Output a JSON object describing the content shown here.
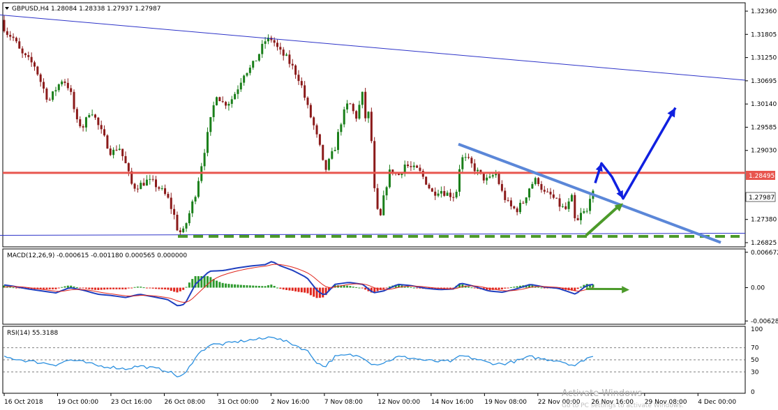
{
  "header": {
    "symbol_info": "GBPUSD,H4  1.28084 1.28338 1.27937 1.27987"
  },
  "chart_data": {
    "type": "candlestick",
    "symbol": "GBPUSD",
    "timeframe": "H4",
    "ohlc_header": {
      "open": 1.28084,
      "high": 1.28338,
      "low": 1.27937,
      "close": 1.27987
    },
    "last_price_label": "1.27987",
    "level_label": "1.28495",
    "price_ticks": [
      "1.32360",
      "1.31805",
      "1.31250",
      "1.30695",
      "1.30140",
      "1.29585",
      "1.29030",
      "1.27380",
      "1.26825"
    ],
    "price_tick_values": [
      1.3236,
      1.31805,
      1.3125,
      1.30695,
      1.3014,
      1.29585,
      1.2903,
      1.2738,
      1.26825
    ],
    "ylim": [
      1.26725,
      1.3256
    ],
    "time_labels": [
      "16 Oct 2018",
      "19 Oct 00:00",
      "23 Oct 16:00",
      "26 Oct 08:00",
      "31 Oct 00:00",
      "2 Nov 16:00",
      "7 Nov 08:00",
      "12 Nov 00:00",
      "14 Nov 16:00",
      "19 Nov 08:00",
      "22 Nov 00:00",
      "26 Nov 16:00",
      "29 Nov 08:00",
      "4 Dec 00:00"
    ],
    "price_path": [
      [
        0,
        1.3215
      ],
      [
        10,
        1.3185
      ],
      [
        20,
        1.317
      ],
      [
        30,
        1.3135
      ],
      [
        40,
        1.312
      ],
      [
        50,
        1.3105
      ],
      [
        60,
        1.306
      ],
      [
        70,
        1.302
      ],
      [
        80,
        1.305
      ],
      [
        90,
        1.3075
      ],
      [
        100,
        1.305
      ],
      [
        110,
        1.297
      ],
      [
        120,
        1.296
      ],
      [
        130,
        1.3005
      ],
      [
        140,
        1.2965
      ],
      [
        150,
        1.293
      ],
      [
        160,
        1.2895
      ],
      [
        170,
        1.2915
      ],
      [
        180,
        1.287
      ],
      [
        190,
        1.2815
      ],
      [
        200,
        1.282
      ],
      [
        210,
        1.283
      ],
      [
        220,
        1.2825
      ],
      [
        230,
        1.281
      ],
      [
        240,
        1.279
      ],
      [
        250,
        1.2745
      ],
      [
        255,
        1.271
      ],
      [
        262,
        1.2705
      ],
      [
        270,
        1.2745
      ],
      [
        280,
        1.28
      ],
      [
        290,
        1.288
      ],
      [
        300,
        1.296
      ],
      [
        310,
        1.304
      ],
      [
        320,
        1.3015
      ],
      [
        330,
        1.302
      ],
      [
        340,
        1.305
      ],
      [
        350,
        1.309
      ],
      [
        360,
        1.31
      ],
      [
        370,
        1.313
      ],
      [
        380,
        1.3165
      ],
      [
        390,
        1.317
      ],
      [
        400,
        1.314
      ],
      [
        410,
        1.3125
      ],
      [
        420,
        1.31
      ],
      [
        430,
        1.307
      ],
      [
        440,
        1.301
      ],
      [
        450,
        1.296
      ],
      [
        460,
        1.29
      ],
      [
        465,
        1.285
      ],
      [
        470,
        1.287
      ],
      [
        480,
        1.291
      ],
      [
        490,
        1.298
      ],
      [
        500,
        1.302
      ],
      [
        510,
        1.298
      ],
      [
        520,
        1.304
      ],
      [
        525,
        1.296
      ],
      [
        530,
        1.301
      ],
      [
        535,
        1.283
      ],
      [
        540,
        1.276
      ],
      [
        545,
        1.274
      ],
      [
        550,
        1.279
      ],
      [
        555,
        1.283
      ],
      [
        560,
        1.286
      ],
      [
        570,
        1.284
      ],
      [
        580,
        1.287
      ],
      [
        590,
        1.286
      ],
      [
        600,
        1.2855
      ],
      [
        610,
        1.283
      ],
      [
        620,
        1.28
      ],
      [
        630,
        1.281
      ],
      [
        640,
        1.28
      ],
      [
        650,
        1.2795
      ],
      [
        655,
        1.281
      ],
      [
        660,
        1.2885
      ],
      [
        670,
        1.288
      ],
      [
        680,
        1.286
      ],
      [
        690,
        1.284
      ],
      [
        700,
        1.283
      ],
      [
        710,
        1.285
      ],
      [
        720,
        1.28
      ],
      [
        730,
        1.277
      ],
      [
        740,
        1.276
      ],
      [
        750,
        1.278
      ],
      [
        760,
        1.282
      ],
      [
        770,
        1.2835
      ],
      [
        780,
        1.28
      ],
      [
        790,
        1.2795
      ],
      [
        800,
        1.2775
      ],
      [
        810,
        1.276
      ],
      [
        820,
        1.279
      ],
      [
        825,
        1.272
      ],
      [
        830,
        1.274
      ],
      [
        835,
        1.276
      ],
      [
        840,
        1.2745
      ],
      [
        846,
        1.28
      ],
      [
        850,
        1.2798
      ]
    ],
    "drawings": {
      "upper_trendline": {
        "from": [
          0,
          1.3227
        ],
        "to": [
          1068,
          1.3071
        ],
        "color": "#2d33c8"
      },
      "bottom_line": {
        "from": [
          0,
          1.27
        ],
        "to": [
          1068,
          1.2705
        ],
        "color": "#2d33c8"
      },
      "resistance_level": {
        "price": 1.28495,
        "color": "#e8554e"
      },
      "support_dashed": {
        "price": 1.26975,
        "from_x": 255,
        "to_x": 1060,
        "color": "#4c9a2a"
      },
      "descending_trendline": {
        "from": [
          657,
          1.2918
        ],
        "to": [
          1033,
          1.2683
        ],
        "color": "#5b87d8"
      },
      "blue_scenario_path": [
        [
          853,
          1.2825
        ],
        [
          862,
          1.2872
        ],
        [
          877,
          1.284
        ],
        [
          893,
          1.2788
        ],
        [
          968,
          1.3005
        ]
      ],
      "green_price_arrow": [
        [
          840,
          1.27
        ],
        [
          893,
          1.2777
        ]
      ],
      "green_macd_arrow": [
        [
          840,
          -0.00025
        ],
        [
          902,
          -0.0004
        ]
      ]
    },
    "macd": {
      "label": "MACD(12,26,9) -0.000615 -0.001180 0.000565 0.000000",
      "ticks": [
        "0.006672",
        "0.00",
        "-0.006284"
      ],
      "tick_values": [
        0.006672,
        0.0,
        -0.006284
      ],
      "ylim": [
        -0.0069,
        0.0073
      ]
    },
    "rsi": {
      "label": "RSI(14) 55.3188",
      "ticks": [
        "70",
        "50",
        "30",
        "100",
        "0"
      ],
      "levels": [
        70,
        50,
        30
      ],
      "ylim": [
        0,
        100
      ],
      "path": [
        [
          0,
          55
        ],
        [
          20,
          52
        ],
        [
          40,
          48
        ],
        [
          60,
          45
        ],
        [
          80,
          42
        ],
        [
          100,
          50
        ],
        [
          120,
          46
        ],
        [
          140,
          40
        ],
        [
          160,
          38
        ],
        [
          180,
          35
        ],
        [
          200,
          40
        ],
        [
          220,
          36
        ],
        [
          240,
          32
        ],
        [
          255,
          22
        ],
        [
          265,
          25
        ],
        [
          280,
          55
        ],
        [
          300,
          75
        ],
        [
          320,
          76
        ],
        [
          340,
          80
        ],
        [
          360,
          83
        ],
        [
          380,
          85
        ],
        [
          390,
          90
        ],
        [
          400,
          84
        ],
        [
          420,
          76
        ],
        [
          440,
          65
        ],
        [
          455,
          45
        ],
        [
          465,
          38
        ],
        [
          480,
          55
        ],
        [
          500,
          58
        ],
        [
          520,
          55
        ],
        [
          535,
          42
        ],
        [
          550,
          45
        ],
        [
          570,
          55
        ],
        [
          590,
          53
        ],
        [
          610,
          49
        ],
        [
          630,
          47
        ],
        [
          650,
          48
        ],
        [
          660,
          57
        ],
        [
          680,
          52
        ],
        [
          700,
          45
        ],
        [
          720,
          43
        ],
        [
          740,
          48
        ],
        [
          760,
          55
        ],
        [
          780,
          51
        ],
        [
          800,
          49
        ],
        [
          825,
          40
        ],
        [
          840,
          53
        ],
        [
          850,
          55
        ]
      ]
    }
  },
  "watermark": {
    "line1": "Activate Windows",
    "line2": "Go to PC settings to activate Windows."
  },
  "colors": {
    "bull_candle": "#1a7f1a",
    "bear_candle": "#8b1a1a",
    "macd_line": "#1f3fbf",
    "signal_line": "#e0261d",
    "hist_pos": "#2e9a2e",
    "hist_neg": "#e0261d",
    "rsi_line": "#2a8fdf"
  }
}
